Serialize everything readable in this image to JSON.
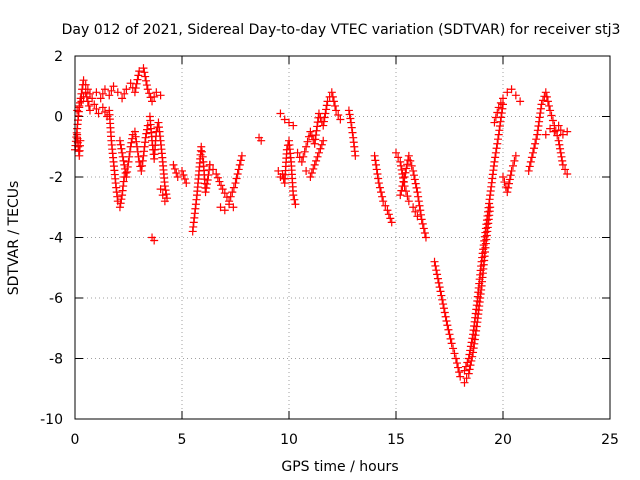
{
  "chart_data": {
    "type": "scatter",
    "title": "Day 012 of 2021, Sidereal Day-to-day VTEC variation (SDTVAR) for receiver stj3",
    "xlabel": "GPS time / hours",
    "ylabel": "SDTVAR / TECUs",
    "xlim": [
      0,
      25
    ],
    "ylim": [
      -10,
      2
    ],
    "xticks": [
      0,
      5,
      10,
      15,
      20,
      25
    ],
    "yticks": [
      -10,
      -8,
      -6,
      -4,
      -2,
      0,
      2
    ],
    "grid": true,
    "marker": "+",
    "marker_color": "#ff0000",
    "segments": [
      {
        "x": [
          0.0,
          0.2,
          0.4,
          0.6,
          0.8,
          1.0,
          1.2,
          1.4,
          1.6,
          1.8,
          2.0,
          2.2,
          2.4,
          2.6,
          2.8,
          3.0,
          3.2,
          3.4,
          3.6,
          3.8,
          4.0
        ],
        "y": [
          -1.1,
          0.3,
          1.2,
          0.9,
          0.6,
          0.8,
          0.6,
          0.9,
          0.7,
          1.0,
          0.8,
          0.6,
          0.9,
          1.1,
          0.8,
          1.5,
          1.6,
          0.9,
          0.5,
          0.8,
          0.7
        ]
      },
      {
        "x": [
          0.1,
          0.3,
          0.5,
          0.7,
          0.9,
          1.1,
          1.3,
          1.5
        ],
        "y": [
          0.2,
          0.5,
          0.8,
          0.2,
          0.4,
          0.1,
          0.3,
          0.0
        ]
      },
      {
        "x": [
          0.1,
          0.15,
          0.2,
          0.25
        ],
        "y": [
          -0.6,
          -1.0,
          -1.3,
          -0.8
        ]
      },
      {
        "x": [
          1.6,
          1.7,
          1.8,
          1.9,
          2.0,
          2.1,
          2.2,
          2.3
        ],
        "y": [
          0.2,
          -0.8,
          -1.5,
          -2.2,
          -2.8,
          -3.0,
          -2.6,
          -2.0
        ]
      },
      {
        "x": [
          2.1,
          2.2,
          2.3,
          2.4,
          2.5,
          2.6,
          2.7
        ],
        "y": [
          -0.8,
          -1.2,
          -1.6,
          -2.0,
          -1.5,
          -1.0,
          -0.6
        ]
      },
      {
        "x": [
          2.8,
          2.9,
          3.0,
          3.1,
          3.2,
          3.3,
          3.4
        ],
        "y": [
          -0.5,
          -1.0,
          -1.5,
          -1.8,
          -1.3,
          -0.7,
          -0.3
        ]
      },
      {
        "x": [
          3.5,
          3.6,
          3.7,
          3.8,
          3.9,
          4.0,
          4.1,
          4.2,
          4.3
        ],
        "y": [
          0.0,
          -0.8,
          -1.4,
          -0.5,
          -0.2,
          -0.8,
          -1.5,
          -2.3,
          -2.7
        ]
      },
      {
        "x": [
          3.6,
          3.7
        ],
        "y": [
          -4.0,
          -4.1
        ]
      },
      {
        "x": [
          4.0,
          4.1,
          4.2
        ],
        "y": [
          -2.4,
          -2.6,
          -2.8
        ]
      },
      {
        "x": [
          5.5,
          5.6,
          5.7,
          5.8,
          5.9,
          6.0,
          6.1,
          6.2,
          6.3
        ],
        "y": [
          -3.8,
          -3.2,
          -2.6,
          -1.8,
          -1.0,
          -1.5,
          -2.5,
          -2.1,
          -1.6
        ]
      },
      {
        "x": [
          6.3,
          6.6,
          6.9,
          7.2,
          7.5,
          7.8
        ],
        "y": [
          -1.6,
          -1.9,
          -2.4,
          -2.8,
          -2.2,
          -1.3
        ]
      },
      {
        "x": [
          6.8,
          7.0,
          7.2,
          7.4
        ],
        "y": [
          -3.0,
          -3.1,
          -2.9,
          -3.0
        ]
      },
      {
        "x": [
          4.6,
          4.8,
          5.0,
          5.2
        ],
        "y": [
          -1.6,
          -2.0,
          -1.8,
          -2.2
        ]
      },
      {
        "x": [
          8.6,
          8.7
        ],
        "y": [
          -0.7,
          -0.8
        ]
      },
      {
        "x": [
          9.5,
          9.6,
          9.7,
          9.8,
          9.9,
          10.0,
          10.1,
          10.2,
          10.3
        ],
        "y": [
          -1.8,
          -2.0,
          -1.9,
          -2.2,
          -1.1,
          -0.8,
          -1.5,
          -2.6,
          -2.9
        ]
      },
      {
        "x": [
          9.6,
          9.8,
          10.0,
          10.2
        ],
        "y": [
          0.1,
          -0.1,
          -0.2,
          -0.3
        ]
      },
      {
        "x": [
          10.4,
          10.6,
          10.8,
          11.0,
          11.2,
          11.4,
          11.6,
          11.8,
          12.0,
          12.2,
          12.4
        ],
        "y": [
          -1.2,
          -1.5,
          -1.0,
          -0.5,
          -0.9,
          0.1,
          -0.3,
          0.5,
          0.8,
          0.2,
          -0.1
        ]
      },
      {
        "x": [
          10.8,
          11.0,
          11.2,
          11.4,
          11.6
        ],
        "y": [
          -1.8,
          -2.0,
          -1.6,
          -1.2,
          -0.8
        ]
      },
      {
        "x": [
          12.8,
          12.9,
          13.0,
          13.1
        ],
        "y": [
          0.2,
          -0.2,
          -0.7,
          -1.3
        ]
      },
      {
        "x": [
          14.0,
          14.2,
          14.4,
          14.6,
          14.8
        ],
        "y": [
          -1.3,
          -2.2,
          -2.8,
          -3.1,
          -3.5
        ]
      },
      {
        "x": [
          15.2,
          15.4,
          15.6,
          15.8,
          16.0,
          16.2,
          16.4
        ],
        "y": [
          -2.6,
          -2.0,
          -1.3,
          -1.8,
          -2.5,
          -3.4,
          -4.0
        ]
      },
      {
        "x": [
          15.0,
          15.2,
          15.4,
          15.6,
          15.8,
          16.0
        ],
        "y": [
          -1.2,
          -1.5,
          -2.3,
          -2.8,
          -3.0,
          -3.3
        ]
      },
      {
        "x": [
          16.8,
          17.0,
          17.2,
          17.4,
          17.6,
          17.8,
          18.0,
          18.2,
          18.4,
          18.6,
          18.8,
          19.0,
          19.2,
          19.4
        ],
        "y": [
          -4.8,
          -5.5,
          -6.2,
          -6.9,
          -7.5,
          -8.0,
          -8.6,
          -8.8,
          -8.5,
          -7.8,
          -6.8,
          -5.6,
          -4.2,
          -3.0
        ]
      },
      {
        "x": [
          18.2,
          18.4,
          18.6,
          18.8,
          19.0,
          19.2,
          19.4,
          19.6,
          19.8,
          20.0
        ],
        "y": [
          -8.4,
          -8.0,
          -7.2,
          -6.1,
          -4.8,
          -3.7,
          -2.6,
          -1.5,
          -0.6,
          0.4
        ]
      },
      {
        "x": [
          19.6,
          19.8,
          20.0,
          20.2,
          20.4,
          20.6,
          20.8
        ],
        "y": [
          -0.2,
          0.3,
          0.6,
          0.8,
          0.9,
          0.7,
          0.5
        ]
      },
      {
        "x": [
          20.0,
          20.2,
          20.4,
          20.6
        ],
        "y": [
          -2.0,
          -2.5,
          -1.8,
          -1.3
        ]
      },
      {
        "x": [
          21.2,
          21.4,
          21.6,
          21.8,
          22.0,
          22.2,
          22.4,
          22.6,
          22.8,
          23.0
        ],
        "y": [
          -1.8,
          -1.2,
          -0.6,
          0.4,
          0.8,
          0.2,
          -0.3,
          -0.8,
          -1.6,
          -1.9
        ]
      },
      {
        "x": [
          22.0,
          22.2,
          22.4,
          22.6,
          22.8,
          23.0
        ],
        "y": [
          -0.6,
          -0.4,
          -0.5,
          -0.3,
          -0.6,
          -0.5
        ]
      }
    ]
  }
}
